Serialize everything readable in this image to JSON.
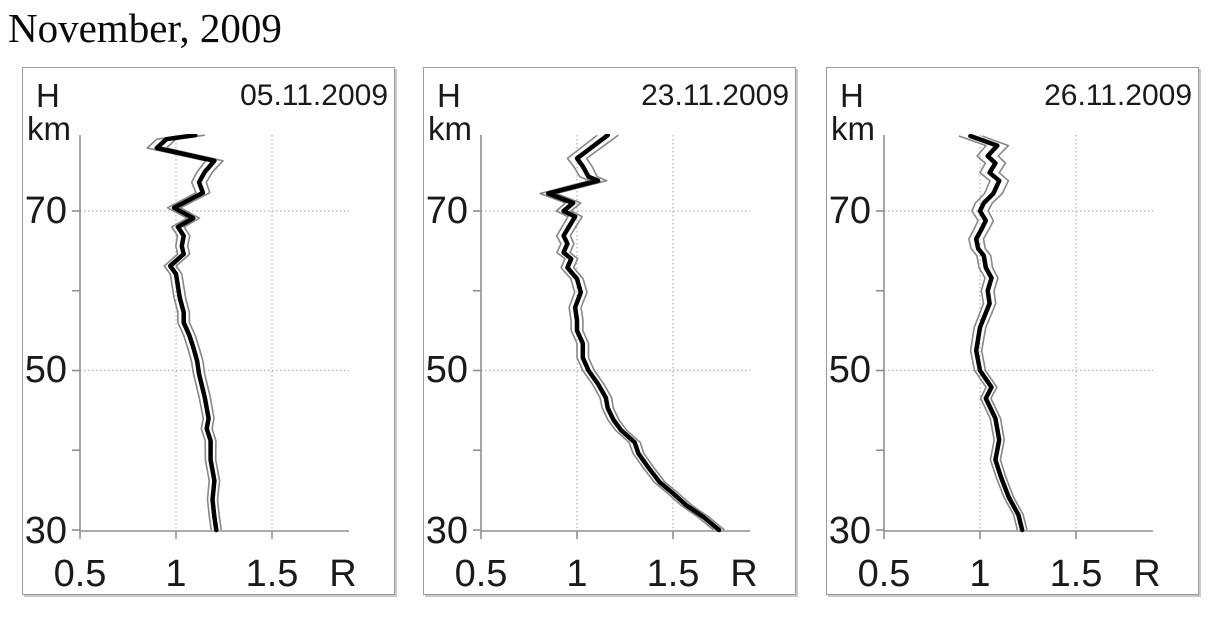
{
  "title": "November, 2009",
  "colors": {
    "main_line": "#000000",
    "envelope_line": "#878787",
    "axis": "#8f8f8f",
    "gridline": "#b0b0b0",
    "panel_border": "#9b9b9b",
    "text": "#1a1a1a"
  },
  "chart_data": [
    {
      "type": "line",
      "date": "05.11.2009",
      "ylabel_symbol": "H",
      "ylabel_unit": "km",
      "xlabel_symbol": "R",
      "x_tick_labels": [
        "0.5",
        "1",
        "1.5"
      ],
      "x_tick_values": [
        0.5,
        1,
        1.5
      ],
      "y_tick_labels": [
        "70",
        "50",
        "30"
      ],
      "y_tick_values": [
        70,
        50,
        30
      ],
      "y_minor_tick_values": [
        60,
        40
      ],
      "x_gridline_values": [
        1,
        1.5
      ],
      "y_gridline_values": [
        70,
        50
      ],
      "xlim": [
        0.5,
        1.9
      ],
      "ylim": [
        30,
        79.5
      ],
      "grid": "dotted",
      "series_note": "scattering ratio R vs height H, thick line = mean, thin gray lines = error envelope",
      "points": [
        [
          1.1,
          79.5,
          0.05
        ],
        [
          0.95,
          79.0,
          0.05
        ],
        [
          0.9,
          77.9,
          0.05
        ],
        [
          1.2,
          76.3,
          0.045
        ],
        [
          1.15,
          74.9,
          0.04
        ],
        [
          1.12,
          73.6,
          0.038
        ],
        [
          1.14,
          72.3,
          0.036
        ],
        [
          0.99,
          70.4,
          0.034
        ],
        [
          1.09,
          69.1,
          0.032
        ],
        [
          1.01,
          68.0,
          0.032
        ],
        [
          1.04,
          66.9,
          0.032
        ],
        [
          1.03,
          65.6,
          0.031
        ],
        [
          1.04,
          64.6,
          0.031
        ],
        [
          0.97,
          63.1,
          0.031
        ],
        [
          1.0,
          62.1,
          0.03
        ],
        [
          1.01,
          60.6,
          0.03
        ],
        [
          1.02,
          59.1,
          0.03
        ],
        [
          1.04,
          57.3,
          0.03
        ],
        [
          1.04,
          56.0,
          0.03
        ],
        [
          1.07,
          54.4,
          0.03
        ],
        [
          1.09,
          52.9,
          0.03
        ],
        [
          1.11,
          51.2,
          0.03
        ],
        [
          1.12,
          49.6,
          0.029
        ],
        [
          1.15,
          46.6,
          0.029
        ],
        [
          1.17,
          44.0,
          0.028
        ],
        [
          1.16,
          42.7,
          0.028
        ],
        [
          1.18,
          41.2,
          0.028
        ],
        [
          1.18,
          38.8,
          0.027
        ],
        [
          1.2,
          36.2,
          0.027
        ],
        [
          1.19,
          33.8,
          0.026
        ],
        [
          1.2,
          31.6,
          0.026
        ],
        [
          1.21,
          30.0,
          0.026
        ]
      ]
    },
    {
      "type": "line",
      "date": "23.11.2009",
      "ylabel_symbol": "H",
      "ylabel_unit": "km",
      "xlabel_symbol": "R",
      "x_tick_labels": [
        "0.5",
        "1",
        "1.5"
      ],
      "x_tick_values": [
        0.5,
        1,
        1.5
      ],
      "y_tick_labels": [
        "70",
        "50",
        "30"
      ],
      "y_tick_values": [
        70,
        50,
        30
      ],
      "y_minor_tick_values": [
        60,
        40
      ],
      "x_gridline_values": [
        1,
        1.5
      ],
      "y_gridline_values": [
        70,
        50
      ],
      "xlim": [
        0.5,
        1.9
      ],
      "ylim": [
        30,
        79.5
      ],
      "grid": "dotted",
      "series_note": "scattering ratio R vs height H, thick line = mean, thin gray lines = error envelope",
      "points": [
        [
          1.16,
          79.5,
          0.055
        ],
        [
          1.0,
          76.6,
          0.05
        ],
        [
          1.03,
          75.6,
          0.048
        ],
        [
          1.06,
          74.3,
          0.045
        ],
        [
          1.11,
          73.8,
          0.045
        ],
        [
          0.85,
          72.2,
          0.042
        ],
        [
          0.98,
          71.0,
          0.04
        ],
        [
          0.93,
          70.0,
          0.038
        ],
        [
          0.99,
          69.3,
          0.037
        ],
        [
          0.96,
          68.1,
          0.036
        ],
        [
          0.93,
          66.9,
          0.035
        ],
        [
          0.95,
          65.9,
          0.034
        ],
        [
          0.93,
          64.8,
          0.034
        ],
        [
          0.97,
          64.0,
          0.033
        ],
        [
          0.95,
          62.9,
          0.033
        ],
        [
          1.0,
          61.5,
          0.032
        ],
        [
          1.02,
          59.8,
          0.032
        ],
        [
          0.99,
          57.9,
          0.031
        ],
        [
          1.0,
          56.3,
          0.031
        ],
        [
          1.0,
          55.0,
          0.03
        ],
        [
          1.03,
          53.4,
          0.03
        ],
        [
          1.03,
          51.6,
          0.03
        ],
        [
          1.06,
          50.0,
          0.03
        ],
        [
          1.11,
          48.3,
          0.03
        ],
        [
          1.15,
          46.6,
          0.03
        ],
        [
          1.16,
          45.3,
          0.029
        ],
        [
          1.19,
          43.8,
          0.029
        ],
        [
          1.23,
          42.5,
          0.029
        ],
        [
          1.3,
          41.0,
          0.029
        ],
        [
          1.32,
          39.6,
          0.028
        ],
        [
          1.37,
          37.9,
          0.028
        ],
        [
          1.43,
          36.0,
          0.028
        ],
        [
          1.5,
          34.6,
          0.028
        ],
        [
          1.57,
          33.1,
          0.028
        ],
        [
          1.66,
          31.6,
          0.028
        ],
        [
          1.74,
          30.0,
          0.028
        ]
      ]
    },
    {
      "type": "line",
      "date": "26.11.2009",
      "ylabel_symbol": "H",
      "ylabel_unit": "km",
      "xlabel_symbol": "R",
      "x_tick_labels": [
        "0.5",
        "1",
        "1.5"
      ],
      "x_tick_values": [
        0.5,
        1,
        1.5
      ],
      "y_tick_labels": [
        "70",
        "50",
        "30"
      ],
      "y_tick_values": [
        70,
        50,
        30
      ],
      "y_minor_tick_values": [
        60,
        40
      ],
      "x_gridline_values": [
        1,
        1.5
      ],
      "y_gridline_values": [
        70,
        50
      ],
      "xlim": [
        0.5,
        1.9
      ],
      "ylim": [
        30,
        79.5
      ],
      "grid": "dotted",
      "series_note": "scattering ratio R vs height H, thick line = mean, thin gray lines = error envelope",
      "points": [
        [
          0.95,
          79.4,
          0.06
        ],
        [
          1.09,
          78.2,
          0.058
        ],
        [
          1.04,
          76.9,
          0.055
        ],
        [
          1.08,
          76.0,
          0.053
        ],
        [
          1.05,
          74.8,
          0.05
        ],
        [
          1.1,
          73.8,
          0.048
        ],
        [
          1.07,
          72.2,
          0.046
        ],
        [
          1.02,
          71.0,
          0.044
        ],
        [
          1.0,
          70.0,
          0.042
        ],
        [
          1.03,
          68.8,
          0.04
        ],
        [
          1.01,
          67.8,
          0.039
        ],
        [
          0.98,
          66.5,
          0.038
        ],
        [
          0.99,
          65.3,
          0.037
        ],
        [
          1.02,
          64.4,
          0.036
        ],
        [
          1.03,
          62.9,
          0.035
        ],
        [
          1.06,
          61.6,
          0.034
        ],
        [
          1.04,
          60.0,
          0.033
        ],
        [
          1.05,
          58.4,
          0.032
        ],
        [
          1.02,
          56.6,
          0.031
        ],
        [
          1.0,
          55.4,
          0.03
        ],
        [
          0.98,
          52.5,
          0.029
        ],
        [
          1.0,
          50.0,
          0.028
        ],
        [
          1.06,
          47.9,
          0.028
        ],
        [
          1.03,
          46.5,
          0.027
        ],
        [
          1.08,
          44.0,
          0.027
        ],
        [
          1.1,
          41.3,
          0.026
        ],
        [
          1.08,
          38.8,
          0.026
        ],
        [
          1.11,
          36.6,
          0.025
        ],
        [
          1.15,
          34.1,
          0.025
        ],
        [
          1.2,
          31.9,
          0.025
        ],
        [
          1.22,
          30.0,
          0.025
        ]
      ]
    }
  ]
}
